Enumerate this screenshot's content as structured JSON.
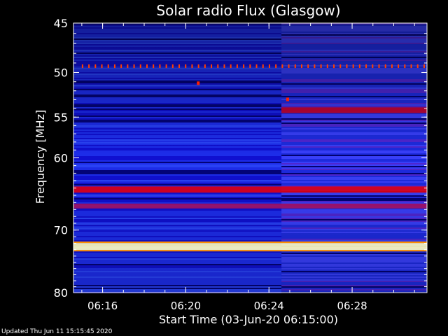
{
  "footer": "Updated Thu Jun 11 15:15:45 2020",
  "chart_data": {
    "type": "heatmap",
    "title": "Solar radio Flux (Glasgow)",
    "xlabel": "Start Time (03-Jun-20 06:15:00)",
    "ylabel": "Frequency [MHz]",
    "x_unit": "minutes after 06:15:00",
    "xlim": [
      -0.4,
      16.6
    ],
    "ylim": [
      45,
      80
    ],
    "y_scale": "log",
    "grid": false,
    "x_ticks": [
      {
        "value": 1,
        "label": "06:16"
      },
      {
        "value": 5,
        "label": "06:20"
      },
      {
        "value": 9,
        "label": "06:24"
      },
      {
        "value": 13,
        "label": "06:28"
      }
    ],
    "y_ticks": [
      {
        "value": 45,
        "label": "45"
      },
      {
        "value": 50,
        "label": "50"
      },
      {
        "value": 55,
        "label": "55"
      },
      {
        "value": 60,
        "label": "60"
      },
      {
        "value": 70,
        "label": "70"
      },
      {
        "value": 80,
        "label": "80"
      }
    ],
    "colormap": [
      "#000060",
      "#1010d0",
      "#3050ff",
      "#8020a0",
      "#c00020",
      "#ff3000",
      "#ffd040",
      "#ffffe0"
    ],
    "intensity_change_time": 9.6,
    "features": [
      {
        "kind": "band",
        "freq": 72.5,
        "intensity": 1.0,
        "color": "#ffffc0"
      },
      {
        "kind": "band",
        "freq": 64.2,
        "intensity": 0.8,
        "color": "#e00010"
      },
      {
        "kind": "band",
        "freq": 66.5,
        "intensity": 0.5,
        "color": "#a01060"
      },
      {
        "kind": "band",
        "freq": 54.2,
        "intensity": 0.7,
        "color": "#b00020",
        "from": 9.6
      },
      {
        "kind": "dotted_band",
        "freq": 49.3,
        "intensity": 0.9,
        "color": "#ff4000"
      },
      {
        "kind": "spot",
        "freq": 51.2,
        "time": 5.6,
        "intensity": 0.9,
        "color": "#ff2000"
      },
      {
        "kind": "spot",
        "freq": 53.0,
        "time": 9.9,
        "intensity": 0.9,
        "color": "#ff2000"
      }
    ]
  }
}
